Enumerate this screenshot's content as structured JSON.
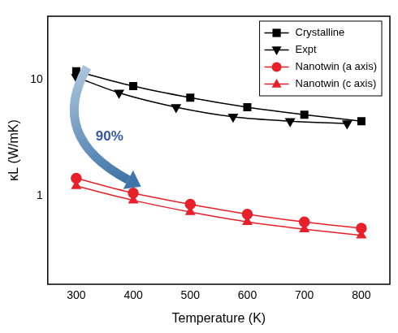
{
  "chart_data": {
    "type": "line",
    "x_label": "Temperature (K)",
    "y_label": "κL (W/mK)",
    "series": [
      {
        "name": "Crystalline",
        "color": "#000000",
        "marker": "square",
        "x": [
          300,
          400,
          500,
          600,
          700,
          800
        ],
        "values": [
          11.8,
          8.8,
          7.0,
          5.8,
          5.0,
          4.4
        ]
      },
      {
        "name": "Expt",
        "color": "#000000",
        "marker": "triangle_down",
        "x": [
          300,
          375,
          475,
          575,
          675,
          775
        ],
        "values": [
          10.5,
          7.7,
          5.8,
          4.8,
          4.4,
          4.2
        ]
      },
      {
        "name": "Nanotwin (a axis)",
        "color": "#e8202a",
        "marker": "circle",
        "x": [
          300,
          400,
          500,
          600,
          700,
          800
        ],
        "values": [
          1.42,
          1.06,
          0.85,
          0.7,
          0.6,
          0.53
        ]
      },
      {
        "name": "Nanotwin (c axis)",
        "color": "#e8202a",
        "marker": "triangle",
        "x": [
          300,
          400,
          500,
          600,
          700,
          800
        ],
        "values": [
          1.22,
          0.92,
          0.73,
          0.6,
          0.52,
          0.46
        ]
      }
    ],
    "xlim": [
      250,
      850
    ],
    "xticks": [
      300,
      400,
      500,
      600,
      700,
      800
    ],
    "ylim": [
      0.175,
      35
    ],
    "yticks": [
      1,
      10
    ],
    "log": "y",
    "grid": false,
    "legend": "top-right",
    "annotations": [
      {
        "text": "90%"
      }
    ]
  }
}
